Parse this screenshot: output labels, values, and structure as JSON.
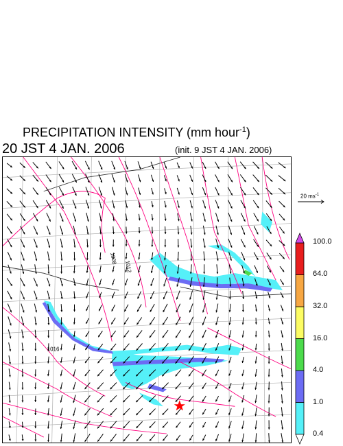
{
  "header": {
    "title": "PRECIPITATION INTENSITY (mm hour",
    "title_exponent": "-1",
    "title_suffix": ")",
    "valid_time": "20 JST 4 JAN. 2006",
    "init_time": "(init. 9 JST 4 JAN. 2006)"
  },
  "wind_reference": {
    "label": "20 ms",
    "label_exponent": "-1",
    "arrow_color": "#000000"
  },
  "colorbar": {
    "levels": [
      "0.4",
      "1.0",
      "4.0",
      "16.0",
      "32.0",
      "64.0",
      "100.0"
    ],
    "colors": [
      "#55f0f8",
      "#6c6cf4",
      "#4cdb4c",
      "#fcfc63",
      "#f7a743",
      "#e81e1e"
    ],
    "overflow_color": "#d14be8",
    "underflow_color": "#ffffff"
  },
  "map_style": {
    "coastline_color": "#ff007f",
    "grid_color": "#b0b0b0",
    "border_color": "#333333",
    "marker_color": "#ff0000",
    "marker_icon": "star-icon"
  }
}
